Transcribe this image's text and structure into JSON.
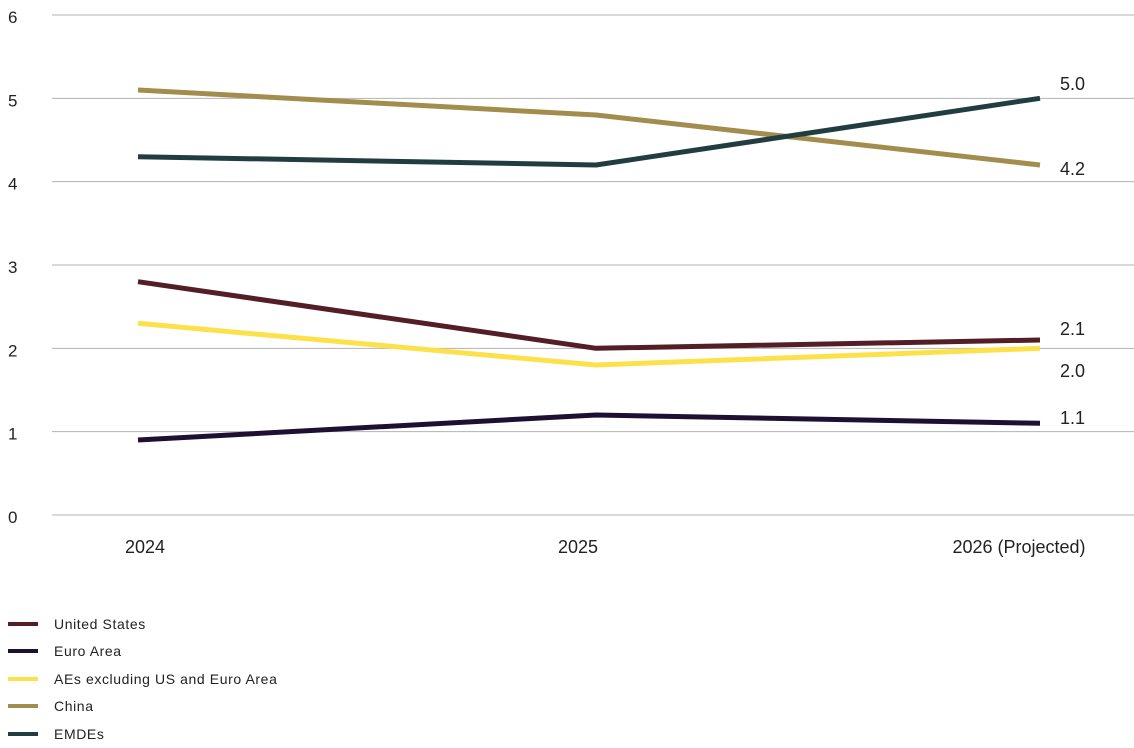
{
  "chart_data": {
    "type": "line",
    "title": "",
    "xlabel": "",
    "ylabel": "",
    "categories": [
      "2024",
      "2025",
      "2026 (Projected)"
    ],
    "ylim": [
      0,
      6
    ],
    "yticks": [
      "0",
      "1",
      "2",
      "3",
      "4",
      "5",
      "6"
    ],
    "grid": true,
    "legend_placement": "bottom-left",
    "series": [
      {
        "name": "United States",
        "color": "#541e27",
        "values": [
          2.8,
          2.0,
          2.1
        ],
        "end_label": "2.1"
      },
      {
        "name": "Euro Area",
        "color": "#1d1033",
        "values": [
          0.9,
          1.2,
          1.1
        ],
        "end_label": "1.1"
      },
      {
        "name": "AEs excluding US and Euro Area",
        "color": "#fde14a",
        "values": [
          2.3,
          1.8,
          2.0
        ],
        "end_label": "2.0"
      },
      {
        "name": "China",
        "color": "#a38d4e",
        "values": [
          5.1,
          4.8,
          4.2
        ],
        "end_label": "4.2"
      },
      {
        "name": "EMDEs",
        "color": "#223d40",
        "values": [
          4.3,
          4.2,
          5.0
        ],
        "end_label": "5.0"
      }
    ]
  }
}
